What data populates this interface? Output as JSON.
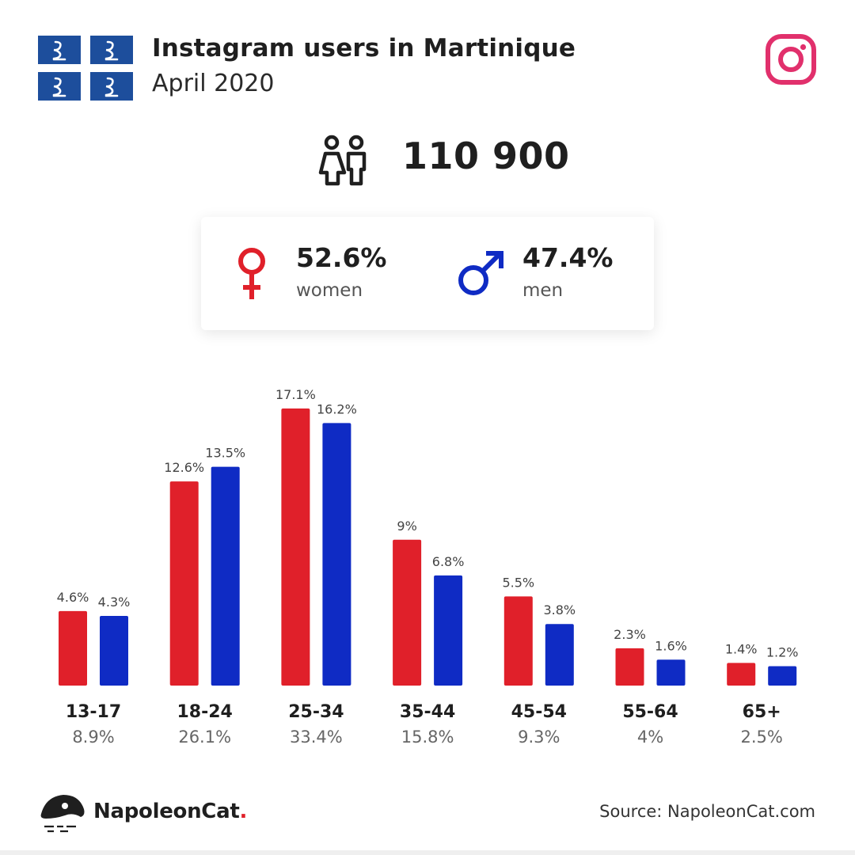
{
  "header": {
    "title": "Instagram users in Martinique",
    "subtitle": "April 2020",
    "flag_icon": "martinique-flag-icon",
    "platform_icon": "instagram-icon"
  },
  "total": {
    "icon": "people-icon",
    "value": "110 900"
  },
  "gender": {
    "women": {
      "icon": "female-icon",
      "percent": "52.6%",
      "label": "women"
    },
    "men": {
      "icon": "male-icon",
      "percent": "47.4%",
      "label": "men"
    }
  },
  "colors": {
    "women": "#e0202a",
    "men": "#0f2bc4",
    "instagram": "#e1306c"
  },
  "chart_data": {
    "type": "bar",
    "categories": [
      "13-17",
      "18-24",
      "25-34",
      "35-44",
      "45-54",
      "55-64",
      "65+"
    ],
    "totals": [
      "8.9%",
      "26.1%",
      "33.4%",
      "15.8%",
      "9.3%",
      "4%",
      "2.5%"
    ],
    "series": [
      {
        "name": "women",
        "values": [
          4.6,
          12.6,
          17.1,
          9,
          5.5,
          2.3,
          1.4
        ],
        "labels": [
          "4.6%",
          "12.6%",
          "17.1%",
          "9%",
          "5.5%",
          "2.3%",
          "1.4%"
        ]
      },
      {
        "name": "men",
        "values": [
          4.3,
          13.5,
          16.2,
          6.8,
          3.8,
          1.6,
          1.2
        ],
        "labels": [
          "4.3%",
          "13.5%",
          "16.2%",
          "6.8%",
          "3.8%",
          "1.6%",
          "1.2%"
        ]
      }
    ],
    "ylim": [
      0,
      17.1
    ],
    "grid": false,
    "legend": "none"
  },
  "footer": {
    "brand": "NapoleonCat",
    "brand_dot": ".",
    "source": "Source: NapoleonCat.com"
  }
}
